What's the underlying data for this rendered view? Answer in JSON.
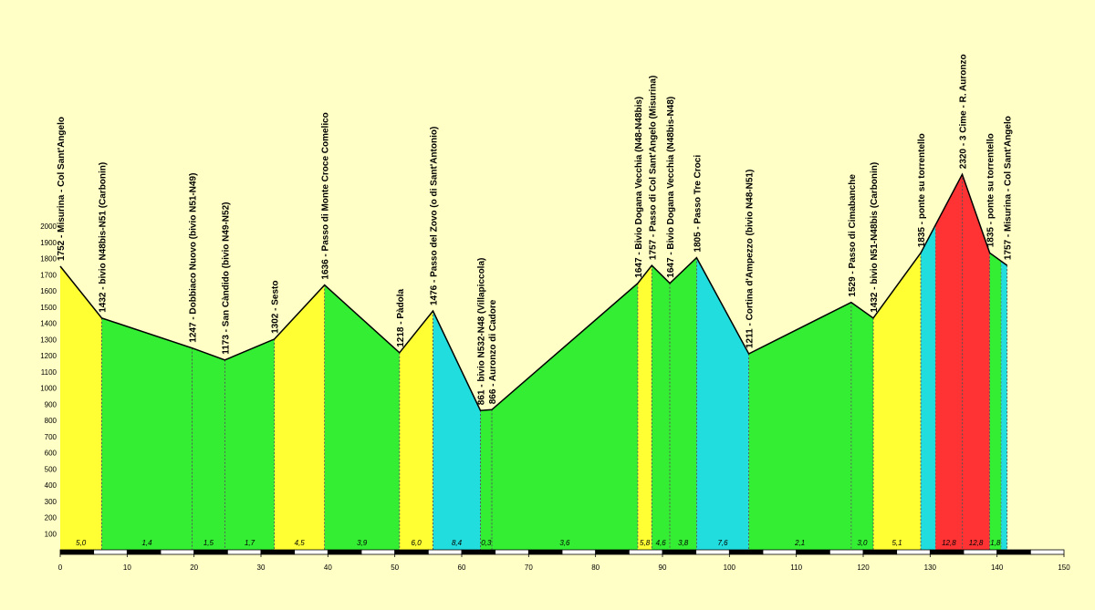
{
  "chart_data": {
    "type": "area",
    "title": "",
    "xlabel": "",
    "ylabel": "",
    "xlim": [
      0,
      150
    ],
    "ylim": [
      0,
      2000
    ],
    "x_ticks": [
      "0",
      "10",
      "20",
      "30",
      "40",
      "50",
      "60",
      "70",
      "80",
      "90",
      "100",
      "110",
      "120",
      "130",
      "140",
      "150"
    ],
    "y_ticks": [
      "100",
      "200",
      "300",
      "400",
      "500",
      "600",
      "700",
      "800",
      "900",
      "1000",
      "1100",
      "1200",
      "1300",
      "1400",
      "1500",
      "1600",
      "1700",
      "1800",
      "1900",
      "2000"
    ],
    "points": [
      {
        "km": 0.0,
        "alt": 1752,
        "label": "1752 -  Misurina - Col Sant'Angelo"
      },
      {
        "km": 6.2,
        "alt": 1432,
        "label": "1432 -  bivio N48bis-N51 (Carbonin)"
      },
      {
        "km": 19.7,
        "alt": 1247,
        "label": "1247 -  Dobbiaco Nuovo (bivio N51-N49)"
      },
      {
        "km": 24.6,
        "alt": 1173,
        "label": "1173 -  San Càndido (bivio N49-N52)"
      },
      {
        "km": 32.0,
        "alt": 1302,
        "label": "1302 -  Sesto"
      },
      {
        "km": 39.5,
        "alt": 1636,
        "label": "1636 -  Passo di Monte Croce Comelico"
      },
      {
        "km": 50.7,
        "alt": 1218,
        "label": "1218 -  Pàdola"
      },
      {
        "km": 55.7,
        "alt": 1476,
        "label": "1476 -  Passo del Zovo (o di Sant'Antonio)"
      },
      {
        "km": 62.8,
        "alt": 861,
        "label": "861 -  bivio N532-N48 (Villapiccola)"
      },
      {
        "km": 64.5,
        "alt": 866,
        "label": "866 -  Auronzo di Cadore"
      },
      {
        "km": 86.3,
        "alt": 1647,
        "label": "1647 -  Bivio Dogana Vecchia (N48-N48bis)"
      },
      {
        "km": 88.4,
        "alt": 1757,
        "label": "1757 -  Passo di Col Sant'Angelo (Misurina)"
      },
      {
        "km": 91.1,
        "alt": 1647,
        "label": "1647 -  Bivio Dogana Vecchia (N48bis-N48)"
      },
      {
        "km": 95.1,
        "alt": 1805,
        "label": "1805 -  Passo Tre Croci"
      },
      {
        "km": 102.9,
        "alt": 1211,
        "label": "1211 -  Cortina d'Ampezzo (bivio N48-N51)"
      },
      {
        "km": 118.2,
        "alt": 1529,
        "label": "1529 -  Passo di Cimabanche"
      },
      {
        "km": 121.5,
        "alt": 1432,
        "label": "1432 -  bivio N51-N48bis (Carbonin)"
      },
      {
        "km": 128.6,
        "alt": 1835,
        "label": "1835 -  ponte su torrentello"
      },
      {
        "km": 134.8,
        "alt": 2320,
        "label": "2320 - 3 Cime - R. Auronzo"
      },
      {
        "km": 138.9,
        "alt": 1835,
        "label": "1835 -  ponte su torrentello"
      },
      {
        "km": 141.5,
        "alt": 1757,
        "label": "1757 -  Misurina - Col Sant'Angelo"
      }
    ],
    "segments": [
      {
        "x0": 0.0,
        "x1": 6.2,
        "grade": "5,0",
        "color": "#ffff33"
      },
      {
        "x0": 6.2,
        "x1": 19.7,
        "grade": "1,4",
        "color": "#33ee33"
      },
      {
        "x0": 19.7,
        "x1": 24.6,
        "grade": "1,5",
        "color": "#33ee33"
      },
      {
        "x0": 24.6,
        "x1": 32.0,
        "grade": "1,7",
        "color": "#33ee33"
      },
      {
        "x0": 32.0,
        "x1": 39.5,
        "grade": "4,5",
        "color": "#ffff33"
      },
      {
        "x0": 39.5,
        "x1": 50.7,
        "grade": "3,9",
        "color": "#33ee33"
      },
      {
        "x0": 50.7,
        "x1": 55.7,
        "grade": "6,0",
        "color": "#ffff33"
      },
      {
        "x0": 55.7,
        "x1": 62.8,
        "grade": "8,4",
        "color": "#22dddd"
      },
      {
        "x0": 62.8,
        "x1": 64.5,
        "grade": "0,3",
        "color": "#33ee33"
      },
      {
        "x0": 64.5,
        "x1": 86.3,
        "grade": "3,6",
        "color": "#33ee33"
      },
      {
        "x0": 86.3,
        "x1": 88.4,
        "grade": "5,8",
        "color": "#ffff33"
      },
      {
        "x0": 88.4,
        "x1": 91.1,
        "grade": "4,6",
        "color": "#33ee33"
      },
      {
        "x0": 91.1,
        "x1": 95.1,
        "grade": "3,8",
        "color": "#33ee33"
      },
      {
        "x0": 95.1,
        "x1": 102.9,
        "grade": "7,6",
        "color": "#22dddd"
      },
      {
        "x0": 102.9,
        "x1": 118.2,
        "grade": "2,1",
        "color": "#33ee33"
      },
      {
        "x0": 118.2,
        "x1": 121.5,
        "grade": "3,0",
        "color": "#33ee33"
      },
      {
        "x0": 121.5,
        "x1": 128.6,
        "grade": "5,1",
        "color": "#ffff33"
      },
      {
        "x0": 128.6,
        "x1": 130.8,
        "grade": "",
        "color": "#22dddd"
      },
      {
        "x0": 130.8,
        "x1": 134.8,
        "grade": "12,8",
        "color": "#ff3333"
      },
      {
        "x0": 134.8,
        "x1": 138.9,
        "grade": "12,8",
        "color": "#ff3333"
      },
      {
        "x0": 138.9,
        "x1": 140.6,
        "grade": "1,8",
        "color": "#33ee33"
      },
      {
        "x0": 140.6,
        "x1": 141.5,
        "grade": "",
        "color": "#22dddd"
      }
    ],
    "km_bar_colors": [
      "#000000",
      "#ffffff"
    ],
    "legend": "none",
    "grid": false
  }
}
